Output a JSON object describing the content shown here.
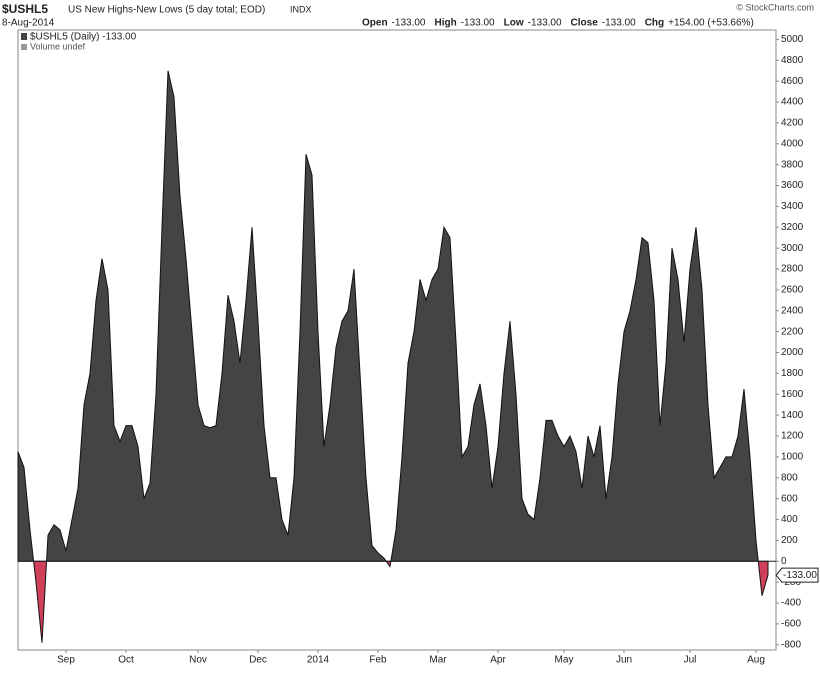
{
  "chart_data": {
    "type": "area",
    "symbol": "$USHL5",
    "title": "US New Highs-New Lows (5 day total; EOD)",
    "exchange": "INDX",
    "date": "8-Aug-2014",
    "quote": [
      {
        "name": "Open",
        "value": "-133.00"
      },
      {
        "name": "High",
        "value": "-133.00"
      },
      {
        "name": "Low",
        "value": "-133.00"
      },
      {
        "name": "Close",
        "value": "-133.00"
      },
      {
        "name": "Chg",
        "value": "+154.00 (+53.66%)"
      }
    ],
    "credit": "© StockCharts.com",
    "legend": [
      "$USHL5 (Daily) -133.00",
      "Volume undef"
    ],
    "last_value_label": "-133.00",
    "positive_color": "#444444",
    "negative_color": "#d0405a",
    "categories": [
      null,
      null,
      null,
      null,
      null,
      null,
      null,
      null,
      "Sep",
      null,
      null,
      null,
      null,
      null,
      null,
      null,
      null,
      null,
      "Oct",
      null,
      null,
      null,
      null,
      null,
      null,
      null,
      null,
      null,
      null,
      null,
      "Nov",
      null,
      null,
      null,
      null,
      null,
      null,
      null,
      null,
      null,
      "Dec",
      null,
      null,
      null,
      null,
      null,
      null,
      null,
      null,
      null,
      "2014",
      null,
      null,
      null,
      null,
      null,
      null,
      null,
      null,
      null,
      "Feb",
      null,
      null,
      null,
      null,
      null,
      null,
      null,
      null,
      null,
      "Mar",
      null,
      null,
      null,
      null,
      null,
      null,
      null,
      null,
      null,
      "Apr",
      null,
      null,
      null,
      null,
      null,
      null,
      null,
      null,
      null,
      null,
      "May",
      null,
      null,
      null,
      null,
      null,
      null,
      null,
      null,
      null,
      "Jun",
      null,
      null,
      null,
      null,
      null,
      null,
      null,
      null,
      null,
      null,
      "Jul",
      null,
      null,
      null,
      null,
      null,
      null,
      null,
      null,
      null,
      null,
      "Aug",
      null,
      null
    ],
    "values": [
      1050,
      900,
      300,
      -200,
      -780,
      250,
      350,
      300,
      100,
      400,
      700,
      1500,
      1800,
      2500,
      2900,
      2600,
      1300,
      1150,
      1300,
      1300,
      1100,
      600,
      750,
      1600,
      3200,
      4700,
      4450,
      3500,
      2900,
      2200,
      1500,
      1300,
      1280,
      1300,
      1800,
      2550,
      2300,
      1900,
      2500,
      3200,
      2300,
      1300,
      800,
      800,
      400,
      250,
      800,
      2200,
      3900,
      3700,
      2200,
      1100,
      1500,
      2050,
      2300,
      2400,
      2800,
      1800,
      800,
      150,
      80,
      30,
      -50,
      300,
      1000,
      1900,
      2200,
      2700,
      2500,
      2700,
      2800,
      3200,
      3100,
      2100,
      1000,
      1100,
      1500,
      1700,
      1300,
      700,
      1100,
      1800,
      2300,
      1600,
      600,
      450,
      400,
      800,
      1350,
      1350,
      1200,
      1100,
      1200,
      1050,
      700,
      1200,
      1000,
      1300,
      600,
      1000,
      1700,
      2200,
      2400,
      2700,
      3100,
      3050,
      2500,
      1300,
      1900,
      3000,
      2700,
      2100,
      2800,
      3200,
      2600,
      1500,
      800,
      900,
      1000,
      1000,
      1200,
      1650,
      1000,
      200,
      -330,
      -133
    ],
    "ylim": [
      -850,
      5090
    ],
    "yticks": [
      -800,
      -600,
      -400,
      -200,
      0,
      200,
      400,
      600,
      800,
      1000,
      1200,
      1400,
      1600,
      1800,
      2000,
      2200,
      2400,
      2600,
      2800,
      3000,
      3200,
      3400,
      3600,
      3800,
      4000,
      4200,
      4400,
      4600,
      4800,
      5000
    ],
    "grid": false
  }
}
